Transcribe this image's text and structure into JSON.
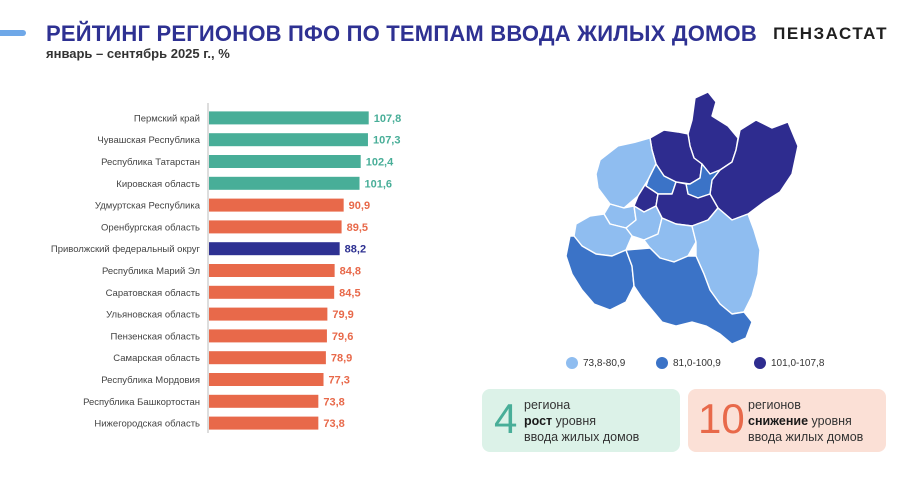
{
  "header": {
    "title": "РЕЙТИНГ РЕГИОНОВ ПФО ПО ТЕМПАМ ВВОДА ЖИЛЫХ ДОМОВ",
    "subtitle": "январь – сентябрь 2025 г., %",
    "brand": "ПЕНЗАСТАТ"
  },
  "colors": {
    "growth": "#48ae98",
    "decline": "#e8694a",
    "federal": "#2e3192",
    "accent": "#6fa8e8",
    "map_light": "#8fbdf0",
    "map_mid": "#3b73c7",
    "map_dark": "#2e2c8f"
  },
  "chart_data": {
    "type": "bar",
    "orientation": "horizontal",
    "title": "РЕЙТИНГ РЕГИОНОВ ПФО ПО ТЕМПАМ ВВОДА ЖИЛЫХ ДОМОВ",
    "subtitle": "январь – сентябрь 2025 г., %",
    "categories": [
      "Пермский край",
      "Чувашская Республика",
      "Республика Татарстан",
      "Кировская область",
      "Удмуртская Республика",
      "Оренбургская область",
      "Приволжский федеральный округ",
      "Республика Марий Эл",
      "Саратовская область",
      "Ульяновская область",
      "Пензенская область",
      "Самарская область",
      "Республика Мордовия",
      "Республика Башкортостан",
      "Нижегородская область"
    ],
    "values": [
      107.8,
      107.3,
      102.4,
      101.6,
      90.9,
      89.5,
      88.2,
      84.8,
      84.5,
      79.9,
      79.6,
      78.9,
      77.3,
      73.8,
      73.8
    ],
    "labels": [
      "107,8",
      "107,3",
      "102,4",
      "101,6",
      "90,9",
      "89,5",
      "88,2",
      "84,8",
      "84,5",
      "79,9",
      "79,6",
      "78,9",
      "77,3",
      "73,8",
      "73,8"
    ],
    "groups": [
      "growth",
      "growth",
      "growth",
      "growth",
      "decline",
      "decline",
      "federal",
      "decline",
      "decline",
      "decline",
      "decline",
      "decline",
      "decline",
      "decline",
      "decline"
    ],
    "xlim": [
      0,
      108
    ],
    "xlabel": "",
    "ylabel": ""
  },
  "map": {
    "legend": [
      {
        "label": "73,8-80,9",
        "color": "#8fbdf0"
      },
      {
        "label": "81,0-100,9",
        "color": "#3b73c7"
      },
      {
        "label": "101,0-107,8",
        "color": "#2e2c8f"
      }
    ]
  },
  "cards": {
    "growth": {
      "number": "4",
      "line1": "региона",
      "bold": "рост",
      "line2_rest": " уровня",
      "line3": "ввода жилых домов"
    },
    "decline": {
      "number": "10",
      "line1": "регионов",
      "bold": "снижение",
      "line2_rest": " уровня",
      "line3": "ввода жилых домов"
    }
  }
}
